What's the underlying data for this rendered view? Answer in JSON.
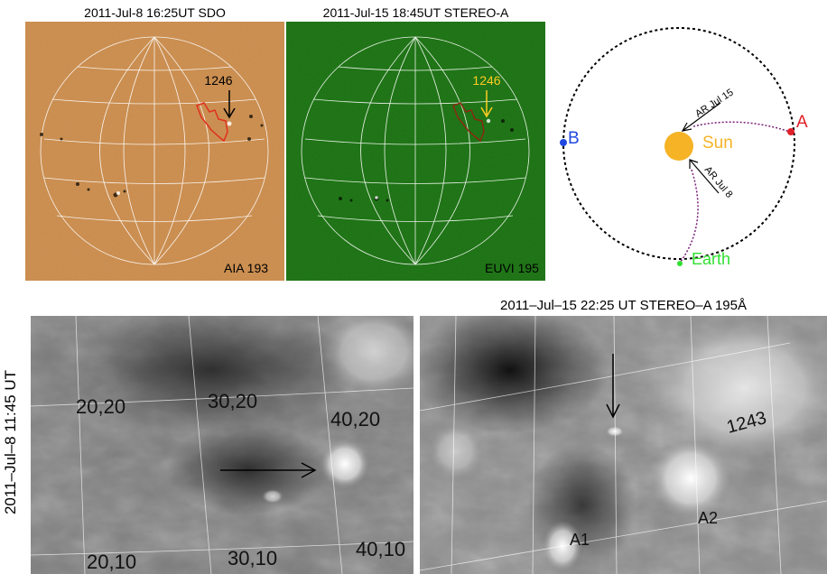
{
  "panels": {
    "sdo": {
      "title": "2011-Jul-8 16:25UT SDO",
      "instrument": "AIA 193",
      "region_label": "1246",
      "background": "#c8894a",
      "contour_color": "#e03020"
    },
    "stereo_a": {
      "title": "2011-Jul-15 18:45UT STEREO-A",
      "instrument": "EUVI 195",
      "region_label": "1246",
      "background": "#1a6e12",
      "contour_color": "#8a2a10",
      "label_color": "#ffcc22"
    },
    "orbit": {
      "labels": {
        "sun": "Sun",
        "stereo_a": "A",
        "stereo_b": "B",
        "earth": "Earth",
        "ar_jul15": "AR Jul 15",
        "ar_jul8": "AR Jul 8"
      },
      "colors": {
        "sun": "#f5b325",
        "stereo_a": "#e0202a",
        "stereo_b": "#2048e0",
        "earth": "#30e030",
        "path": "#7a1f7a"
      }
    },
    "bottom_left": {
      "side_label": "2011–Jul–8 11:45 UT",
      "grid_labels": [
        "20,20",
        "30,20",
        "40,20",
        "20,10",
        "30,10",
        "40,10"
      ]
    },
    "bottom_right": {
      "title": "2011–Jul–15 22:25 UT STEREO–A 195Å",
      "labels": [
        "1243",
        "A2",
        "A1"
      ]
    }
  }
}
